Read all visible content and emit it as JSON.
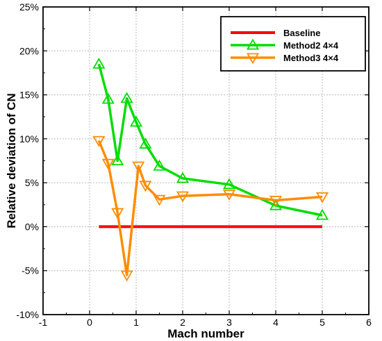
{
  "chart_data": {
    "type": "line",
    "xlabel": "Mach number",
    "ylabel": "Relative deviation of CN",
    "xlim": [
      -1,
      6
    ],
    "ylim": [
      -10,
      25
    ],
    "xticks": [
      -1,
      0,
      1,
      2,
      3,
      4,
      5,
      6
    ],
    "yticks": [
      -10,
      -5,
      0,
      5,
      10,
      15,
      20,
      25
    ],
    "ytick_suffix": "%",
    "grid": true,
    "legend_position": "top-right",
    "series": [
      {
        "name": "Baseline",
        "color": "#ff0000",
        "marker": "none",
        "x": [
          0.2,
          5
        ],
        "y": [
          0,
          0
        ]
      },
      {
        "name": "Method2  4×4",
        "color": "#00dd00",
        "marker": "triangle-up",
        "x": [
          0.2,
          0.4,
          0.6,
          0.8,
          1.0,
          1.2,
          1.5,
          2.0,
          3.0,
          4.0,
          5.0
        ],
        "y": [
          18.5,
          14.5,
          7.5,
          14.6,
          11.9,
          9.4,
          6.9,
          5.5,
          4.8,
          2.4,
          1.3
        ]
      },
      {
        "name": "Method3  4×4",
        "color": "#ff8c00",
        "marker": "triangle-down",
        "x": [
          0.2,
          0.4,
          0.6,
          0.8,
          1.05,
          1.2,
          1.5,
          2.0,
          3.0,
          4.0,
          5.0
        ],
        "y": [
          9.8,
          7.2,
          1.6,
          -5.5,
          6.9,
          4.7,
          3.1,
          3.5,
          3.7,
          3.0,
          3.4
        ]
      }
    ]
  }
}
